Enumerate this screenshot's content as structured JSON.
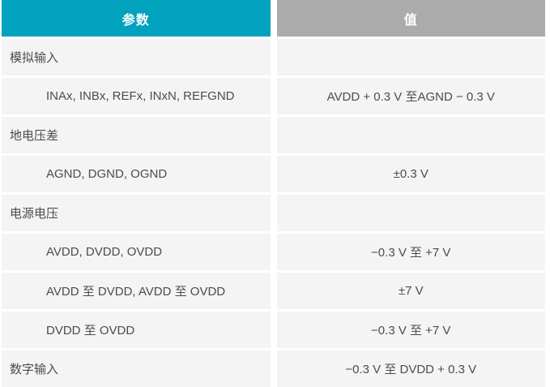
{
  "table": {
    "colors": {
      "accent_teal": "#00a2bd",
      "header_gray": "#ababab",
      "row_background": "#f4f4f4",
      "text_gray": "#4c4c4c"
    },
    "columns": [
      {
        "label": "参数"
      },
      {
        "label": "值"
      }
    ],
    "rows": [
      {
        "type": "section",
        "param": "模拟输入",
        "value": ""
      },
      {
        "type": "sub",
        "param": "INAx, INBx, REFx, INxN, REFGND",
        "value": "AVDD + 0.3 V 至AGND − 0.3 V"
      },
      {
        "type": "section",
        "param": "地电压差",
        "value": ""
      },
      {
        "type": "sub",
        "param": "AGND, DGND, OGND",
        "value": "±0.3 V"
      },
      {
        "type": "section",
        "param": "电源电压",
        "value": ""
      },
      {
        "type": "sub",
        "param": "AVDD, DVDD, OVDD",
        "value": "−0.3 V 至 +7 V"
      },
      {
        "type": "sub",
        "param": "AVDD 至 DVDD, AVDD 至 OVDD",
        "value": "±7 V"
      },
      {
        "type": "sub",
        "param": "DVDD 至 OVDD",
        "value": "−0.3 V 至 +7 V"
      },
      {
        "type": "section",
        "param": "数字输入",
        "value": "−0.3 V 至 DVDD + 0.3 V"
      }
    ]
  }
}
